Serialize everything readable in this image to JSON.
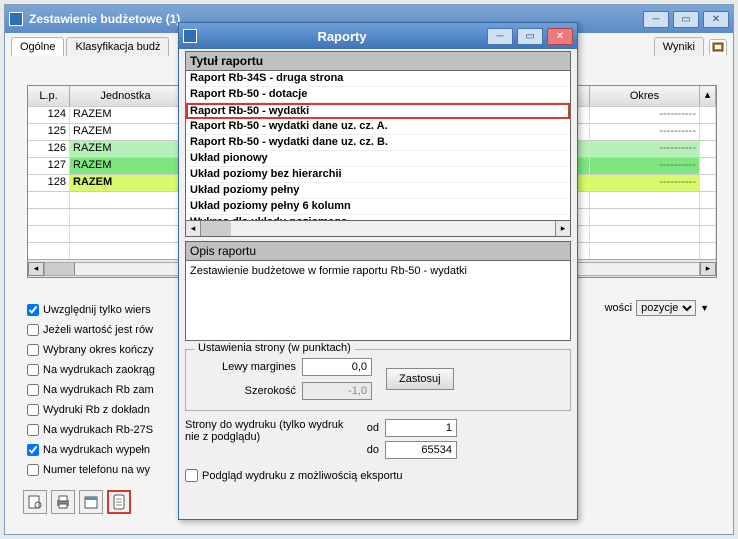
{
  "bg_window": {
    "title": "Zestawienie budżetowe (1)",
    "tabs": {
      "ogolne": "Ogólne",
      "klas": "Klasyfikacja budż",
      "wyniki": "Wyniki"
    }
  },
  "grid": {
    "headers": {
      "lp": "L.p.",
      "jednostka": "Jednostka",
      "okres": "Okres"
    },
    "rows": [
      {
        "lp": "124",
        "jed": "RAZEM",
        "okr": "----------",
        "bg": "#ffffff"
      },
      {
        "lp": "125",
        "jed": "RAZEM",
        "okr": "----------",
        "bg": "#ffffff"
      },
      {
        "lp": "126",
        "jed": "RAZEM",
        "okr": "----------",
        "bg": "#b6f0b6"
      },
      {
        "lp": "127",
        "jed": "RAZEM",
        "okr": "----------",
        "bg": "#7ee67e"
      },
      {
        "lp": "128",
        "jed": "RAZEM",
        "okr": "----------",
        "bg": "#d7f96a",
        "bold": true
      }
    ]
  },
  "opts": {
    "c1": {
      "checked": true,
      "label": "Uwzględnij tylko wiers"
    },
    "c2": {
      "checked": false,
      "label": "Jeżeli wartość jest rów"
    },
    "c3": {
      "checked": false,
      "label": "Wybrany okres kończy"
    },
    "c4": {
      "checked": false,
      "label": "Na wydrukach zaokrąg"
    },
    "c5": {
      "checked": false,
      "label": "Na wydrukach Rb zam"
    },
    "c6": {
      "checked": false,
      "label": "Wydruki Rb z dokładn"
    },
    "c7": {
      "checked": false,
      "label": "Na wydrukach Rb-27S"
    },
    "c8": {
      "checked": true,
      "label": "Na wydrukach wypełn"
    },
    "c9": {
      "checked": false,
      "label": "Numer telefonu na wy"
    }
  },
  "wosci": {
    "label": "wości",
    "value": "pozycje"
  },
  "dlg": {
    "title": "Raporty",
    "list_header": "Tytuł raportu",
    "items": [
      "Raport Rb-34S -  druga strona",
      "Raport Rb-50 - dotacje",
      "Raport Rb-50 - wydatki",
      "Raport Rb-50 - wydatki   dane uz. cz. A.",
      "Raport Rb-50 - wydatki   dane uz. cz. B.",
      "Układ pionowy",
      "Układ poziomy bez hierarchii",
      "Układ poziomy pełny",
      "Układ poziomy pełny 6 kolumn",
      "Wykres dla układu poziomego"
    ],
    "highlight_index": 2,
    "opis_header": "Opis raportu",
    "opis_text": "Zestawienie budżetowe w formie raportu Rb-50 - wydatki",
    "page_group": {
      "title": "Ustawienia strony (w punktach)",
      "left_margin_label": "Lewy margines",
      "left_margin_value": "0,0",
      "width_label": "Szerokość",
      "width_value": "-1,0",
      "apply_btn": "Zastosuj"
    },
    "pages": {
      "text": "Strony do wydruku (tylko wydruk nie z podglądu)",
      "od_label": "od",
      "od_value": "1",
      "do_label": "do",
      "do_value": "65534"
    },
    "export_check": "Podgląd wydruku z możliwością eksportu"
  }
}
